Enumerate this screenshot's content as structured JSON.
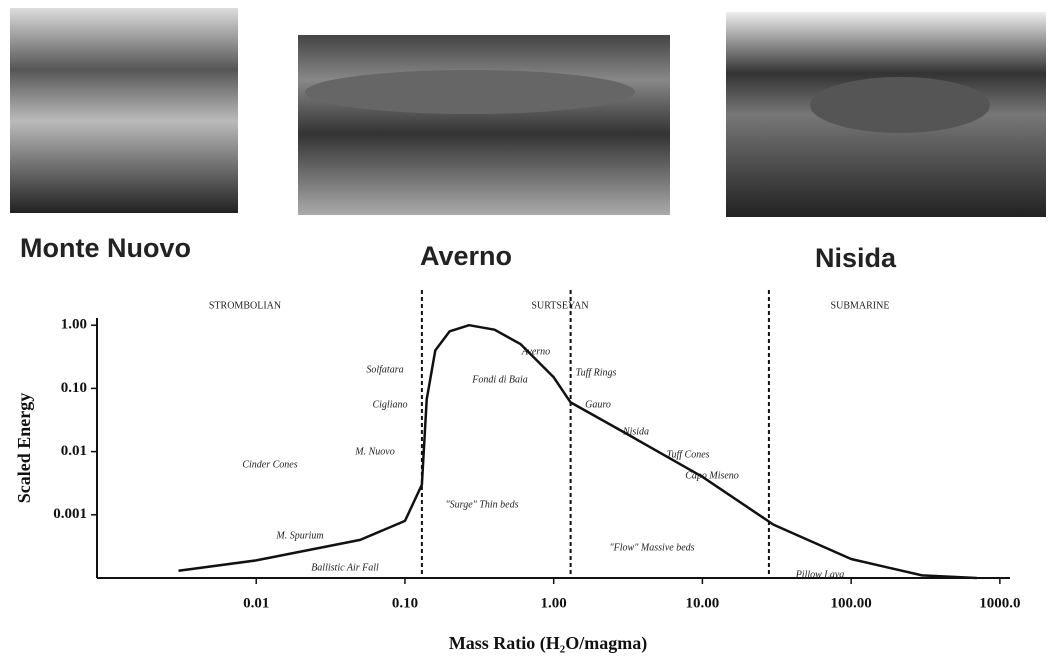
{
  "photos": [
    {
      "caption": "Monte Nuovo"
    },
    {
      "caption": "Averno"
    },
    {
      "caption": "Nisida"
    }
  ],
  "chart_data": {
    "type": "line",
    "xlabel": "Mass Ratio (H₂O/magma)",
    "ylabel": "Scaled Energy",
    "log_x": true,
    "log_y": true,
    "grid": false,
    "x": [
      0.003,
      0.01,
      0.05,
      0.1,
      0.13,
      0.14,
      0.16,
      0.2,
      0.27,
      0.4,
      0.6,
      1.0,
      1.3,
      3,
      10,
      30,
      100,
      300,
      700
    ],
    "series": [
      {
        "name": null,
        "color": "#111111",
        "values": [
          0.00013,
          0.00019,
          0.0004,
          0.0008,
          0.003,
          0.067,
          0.4,
          0.8,
          1.0,
          0.85,
          0.5,
          0.15,
          0.06,
          0.02,
          0.004,
          0.0007,
          0.0002,
          0.00011,
          0.0001
        ]
      }
    ],
    "xlim": [
      0.00085,
      1170
    ],
    "ylim": [
      0.0001,
      1.3
    ],
    "xticks": [
      0.01,
      {
        "value": 0.1,
        "label": "0.10"
      },
      {
        "value": 1,
        "label": "1.00"
      },
      {
        "value": 10,
        "label": "10.00"
      },
      {
        "value": 100,
        "label": "100.00"
      },
      {
        "value": 1000,
        "label": "1000.0"
      }
    ],
    "yticks": [
      0.001,
      0.01,
      {
        "value": 0.1,
        "label": "0.10"
      },
      {
        "value": 1,
        "label": "1.00"
      }
    ],
    "boundaries": [
      0.13,
      1.3,
      28
    ],
    "regions": [
      "STROMBOLIAN",
      "SURTSEYAN",
      "SUBMARINE"
    ],
    "annotations": [
      "Cinder Cones",
      "M. Nuovo",
      "Solfatara",
      "Cigliano",
      "M. Spurium",
      "Ballistic Air Fall",
      "\"Surge\" Thin beds",
      "\"Flow\" Massive beds",
      "Pillow Lava",
      "Averno",
      "Fondi di Baia",
      "Tuff Rings",
      "Gauro",
      "Nisida",
      "Tuff Cones",
      "Capo Miseno"
    ]
  }
}
